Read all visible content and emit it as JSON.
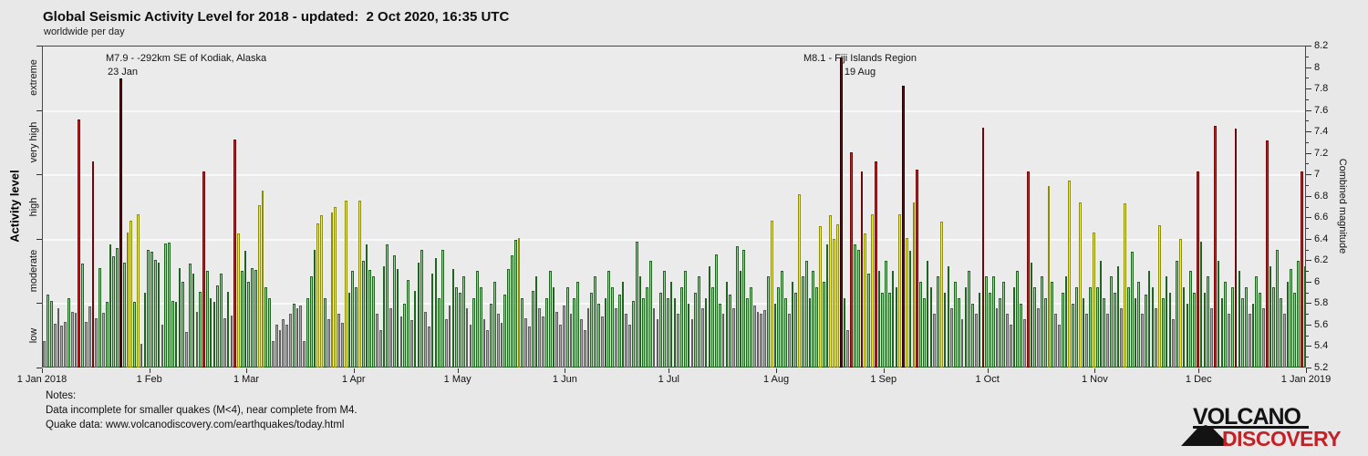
{
  "header": {
    "title": "Global Seismic Activity Level for 2018 - updated:  2 Oct 2020, 16:35 UTC",
    "subtitle": "worldwide per day"
  },
  "chart_data": {
    "type": "bar",
    "title": "Global Seismic Activity Level for 2018 - updated: 2 Oct 2020, 16:35 UTC",
    "subtitle": "worldwide per day",
    "xlabel": "",
    "ylabel_left": "Activity level",
    "ylabel_right": "Combined magnitude",
    "ylim": [
      5.2,
      8.2
    ],
    "grid_on": true,
    "grid_mags": [
      5.8,
      6.4,
      7.0,
      7.6
    ],
    "left_axis_ticks": [
      5.2,
      5.8,
      6.4,
      7.0,
      7.6,
      8.2
    ],
    "right_axis_ticks": [
      {
        "m": 8.2,
        "label": "8.2"
      },
      {
        "m": 8.0,
        "label": "8"
      },
      {
        "m": 7.8,
        "label": "7.8"
      },
      {
        "m": 7.6,
        "label": "7.6"
      },
      {
        "m": 7.4,
        "label": "7.4"
      },
      {
        "m": 7.2,
        "label": "7.2"
      },
      {
        "m": 7.0,
        "label": "7"
      },
      {
        "m": 6.8,
        "label": "6.8"
      },
      {
        "m": 6.6,
        "label": "6.6"
      },
      {
        "m": 6.4,
        "label": "6.4"
      },
      {
        "m": 6.2,
        "label": "6.2"
      },
      {
        "m": 6.0,
        "label": "6"
      },
      {
        "m": 5.8,
        "label": "5.8"
      },
      {
        "m": 5.6,
        "label": "5.6"
      },
      {
        "m": 5.4,
        "label": "5.4"
      },
      {
        "m": 5.2,
        "label": "5.2"
      }
    ],
    "activity_levels": [
      {
        "label": "low",
        "max": 5.8,
        "mid": 5.5,
        "fill": "#a9a9a9",
        "stroke": "#5e5e5e"
      },
      {
        "label": "moderate",
        "max": 6.4,
        "mid": 6.1,
        "fill": "#90d590",
        "stroke": "#1f651f"
      },
      {
        "label": "high",
        "max": 7.0,
        "mid": 6.7,
        "fill": "#f8f800",
        "stroke": "#8d8d00"
      },
      {
        "label": "very high",
        "max": 7.6,
        "mid": 7.3,
        "fill": "#de1b1b",
        "stroke": "#6e0808"
      },
      {
        "label": "extreme",
        "max": 99.0,
        "mid": 7.9,
        "fill": "#5c0f0f",
        "stroke": "#180202"
      }
    ],
    "months": [
      {
        "label": "1 Jan 2018",
        "day": 0
      },
      {
        "label": "1 Feb",
        "day": 31
      },
      {
        "label": "1 Mar",
        "day": 59
      },
      {
        "label": "1 Apr",
        "day": 90
      },
      {
        "label": "1 May",
        "day": 120
      },
      {
        "label": "1 Jun",
        "day": 151
      },
      {
        "label": "1 Jul",
        "day": 181
      },
      {
        "label": "1 Aug",
        "day": 212
      },
      {
        "label": "1 Sep",
        "day": 243
      },
      {
        "label": "1 Oct",
        "day": 273
      },
      {
        "label": "1 Nov",
        "day": 304
      },
      {
        "label": "1 Dec",
        "day": 334
      },
      {
        "label": "1 Jan 2019",
        "day": 365
      }
    ],
    "month_order": [
      "jan",
      "feb",
      "mar",
      "apr",
      "may",
      "jun",
      "jul",
      "aug",
      "sep",
      "oct",
      "nov",
      "dec"
    ],
    "daily_combined_magnitude": {
      "jan": [
        5.45,
        5.88,
        5.82,
        5.61,
        5.75,
        5.59,
        5.63,
        5.85,
        5.72,
        5.71,
        7.52,
        6.17,
        5.63,
        5.77,
        7.13,
        5.66,
        6.13,
        5.71,
        5.81,
        6.35,
        6.24,
        6.32,
        7.9,
        6.18,
        6.46,
        6.57,
        5.81,
        6.63,
        5.42,
        5.9,
        6.3
      ],
      "feb": [
        6.28,
        6.21,
        6.18,
        5.6,
        6.36,
        6.37,
        5.82,
        5.81,
        6.13,
        6.0,
        5.53,
        6.17,
        6.08,
        5.72,
        5.91,
        7.03,
        6.1,
        5.85,
        5.81,
        5.97,
        6.08,
        5.66,
        5.91,
        5.69,
        7.33,
        6.45,
        6.1,
        6.29
      ],
      "mar": [
        6.0,
        6.13,
        6.11,
        6.72,
        6.85,
        5.95,
        5.85,
        5.45,
        5.6,
        5.55,
        5.65,
        5.6,
        5.7,
        5.8,
        5.75,
        5.78,
        5.45,
        5.85,
        6.05,
        6.3,
        6.55,
        6.62,
        5.85,
        5.65,
        6.65,
        6.7,
        5.7,
        5.62,
        6.76,
        5.9,
        6.1
      ],
      "apr": [
        5.95,
        6.76,
        6.2,
        6.35,
        6.11,
        6.05,
        5.7,
        5.55,
        6.15,
        6.35,
        5.75,
        6.25,
        6.12,
        5.68,
        5.8,
        6.02,
        5.64,
        5.92,
        6.18,
        6.3,
        5.72,
        5.58,
        6.08,
        6.22,
        5.85,
        6.3,
        5.65,
        5.78,
        6.12,
        5.95
      ],
      "may": [
        5.9,
        6.05,
        5.75,
        5.6,
        5.85,
        6.1,
        5.95,
        5.65,
        5.55,
        5.8,
        6.0,
        5.7,
        5.62,
        5.88,
        6.12,
        6.25,
        6.39,
        6.41,
        5.85,
        5.66,
        5.58,
        5.92,
        6.05,
        5.75,
        5.68,
        5.85,
        6.1,
        5.95,
        5.72,
        5.6,
        5.78
      ],
      "jun": [
        5.95,
        5.7,
        5.85,
        6.0,
        5.65,
        5.55,
        5.75,
        5.9,
        6.05,
        5.8,
        5.68,
        5.85,
        6.1,
        5.95,
        5.75,
        5.88,
        6.0,
        5.7,
        5.6,
        5.82,
        6.38,
        6.05,
        5.85,
        5.95,
        6.2,
        5.75,
        5.65,
        5.9,
        6.1,
        5.85
      ],
      "jul": [
        6.0,
        5.85,
        5.7,
        5.95,
        6.1,
        5.8,
        5.65,
        5.9,
        6.05,
        5.75,
        5.85,
        6.15,
        5.95,
        6.26,
        5.8,
        5.7,
        6.0,
        5.88,
        5.75,
        6.33,
        6.1,
        6.3,
        5.85,
        5.95,
        5.78,
        5.72,
        5.7,
        5.74,
        6.05,
        6.57,
        5.8
      ],
      "aug": [
        5.95,
        6.1,
        5.85,
        5.7,
        6.0,
        5.9,
        6.82,
        6.05,
        6.2,
        5.85,
        6.1,
        5.95,
        6.52,
        6.0,
        6.35,
        6.62,
        6.4,
        6.54,
        8.1,
        5.85,
        5.55,
        7.21,
        6.35,
        6.3,
        7.03,
        6.45,
        6.08,
        6.63,
        7.13,
        6.1,
        5.9
      ],
      "sep": [
        6.2,
        5.9,
        6.1,
        5.95,
        6.63,
        7.83,
        6.41,
        6.29,
        6.74,
        7.05,
        6.0,
        5.85,
        6.2,
        5.95,
        5.7,
        6.05,
        6.56,
        5.9,
        6.15,
        5.75,
        6.0,
        5.85,
        5.65,
        5.95,
        6.1,
        5.8,
        5.7,
        5.9,
        7.44,
        6.05
      ],
      "oct": [
        5.9,
        6.05,
        5.75,
        5.85,
        6.0,
        5.7,
        5.6,
        5.95,
        6.1,
        5.8,
        5.65,
        7.03,
        6.18,
        5.95,
        5.75,
        6.05,
        5.85,
        6.9,
        6.0,
        5.7,
        5.6,
        5.9,
        6.05,
        6.95,
        5.8,
        5.95,
        6.74,
        5.85,
        5.7,
        5.95,
        6.46
      ],
      "nov": [
        5.95,
        6.2,
        5.85,
        5.7,
        6.05,
        5.9,
        6.15,
        5.75,
        6.73,
        5.95,
        6.28,
        5.85,
        6.0,
        5.7,
        5.88,
        6.1,
        5.95,
        5.75,
        6.53,
        5.85,
        6.05,
        5.9,
        5.65,
        6.2,
        6.4,
        5.95,
        5.8,
        6.1,
        5.9,
        7.03
      ],
      "dec": [
        6.38,
        5.9,
        6.05,
        5.75,
        7.46,
        6.2,
        5.85,
        6.0,
        5.7,
        5.95,
        7.43,
        6.1,
        5.85,
        5.95,
        5.7,
        5.8,
        6.05,
        5.9,
        5.75,
        7.32,
        6.15,
        5.95,
        6.3,
        5.85,
        5.7,
        6.0,
        6.12,
        5.9,
        6.2,
        7.03,
        6.15
      ]
    },
    "annotations": [
      {
        "line1": "M7.9 - -292km SE of Kodiak, Alaska",
        "line2": "23 Jan"
      },
      {
        "line1": "M8.1 - Fiji Islands Region",
        "line2": "19 Aug"
      }
    ]
  },
  "notes": {
    "heading": "Notes:",
    "line1": "Data incomplete for smaller quakes (M<4), near complete from M4.",
    "line2": "Quake data: www.volcanodiscovery.com/earthquakes/today.html"
  },
  "logo": {
    "line1": "VOLCANO",
    "line2": "DISCOVERY"
  }
}
